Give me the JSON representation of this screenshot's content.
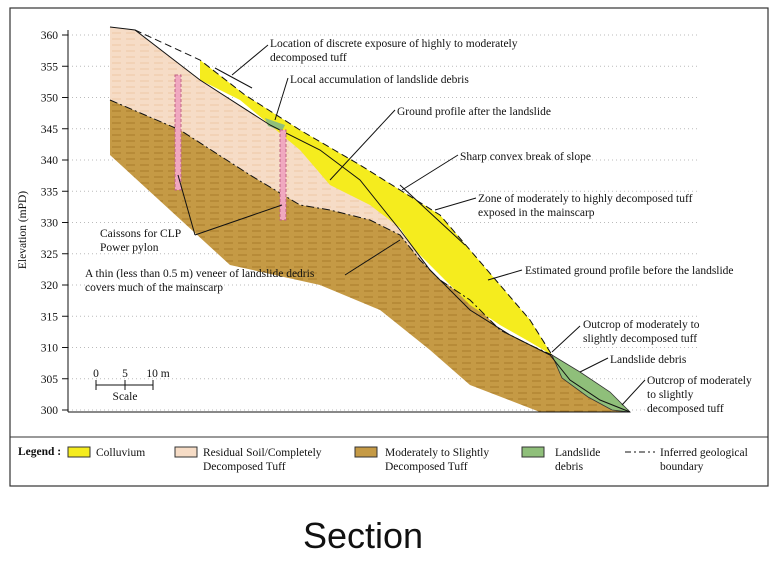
{
  "axis": {
    "label": "Elevation (mPD)",
    "ticks": [
      300,
      305,
      310,
      315,
      320,
      325,
      330,
      335,
      340,
      345,
      350,
      355,
      360
    ]
  },
  "annotations": [
    {
      "lines": [
        "Location of discrete exposure of highly to moderately",
        "decomposed tuff"
      ]
    },
    {
      "lines": [
        "Local accumulation of landslide debris"
      ]
    },
    {
      "lines": [
        "Ground profile after the landslide"
      ]
    },
    {
      "lines": [
        "Sharp convex break of slope"
      ]
    },
    {
      "lines": [
        "Zone of moderately to highly decomposed tuff",
        "exposed in the mainscarp"
      ]
    },
    {
      "lines": [
        "Caissons for CLP",
        "Power pylon"
      ]
    },
    {
      "lines": [
        "A thin (less than 0.5 m) veneer of landslide dedris",
        "covers much of the mainscarp"
      ]
    },
    {
      "lines": [
        "Estimated ground profile before the landslide"
      ]
    },
    {
      "lines": [
        "Outcrop of moderately to",
        "slightly decomposed tuff"
      ]
    },
    {
      "lines": [
        "Landslide debris"
      ]
    },
    {
      "lines": [
        "Outcrop of moderately",
        "to slightly",
        "decomposed tuff"
      ]
    }
  ],
  "scale": {
    "labels": [
      "0",
      "5",
      "10 m"
    ],
    "title": "Scale"
  },
  "legend": {
    "title": "Legend :",
    "items": [
      {
        "lines": [
          "Colluvium"
        ]
      },
      {
        "lines": [
          "Residual Soil/Completely",
          "Decomposed Tuff"
        ]
      },
      {
        "lines": [
          "Moderately to Slightly",
          "Decomposed Tuff"
        ]
      },
      {
        "lines": [
          "Landslide",
          "debris"
        ]
      },
      {
        "lines": [
          "Inferred geological",
          "boundary"
        ]
      }
    ]
  },
  "caption": "Section"
}
